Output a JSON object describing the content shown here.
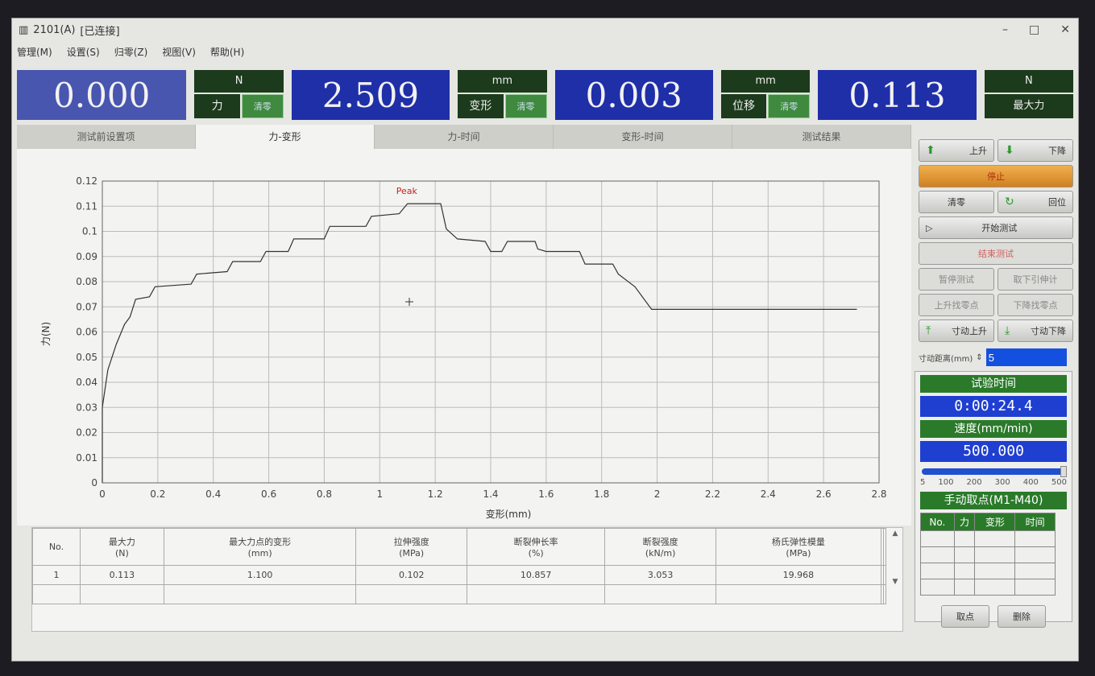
{
  "window": {
    "title": "2101(A)",
    "status": "[已连接]",
    "controls": {
      "minimize": "–",
      "maximize": "□",
      "close": "✕"
    }
  },
  "menu": [
    "管理(M)",
    "设置(S)",
    "归零(Z)",
    "视图(V)",
    "帮助(H)"
  ],
  "readouts": [
    {
      "value": "0.000",
      "unit": "N",
      "label": "力",
      "button": "清零"
    },
    {
      "value": "2.509",
      "unit": "mm",
      "label": "变形",
      "button": "清零"
    },
    {
      "value": "0.003",
      "unit": "mm",
      "label": "位移",
      "button": "清零"
    },
    {
      "value": "0.113",
      "unit": "N",
      "label": "最大力"
    }
  ],
  "tabs": [
    "测试前设置项",
    "力-变形",
    "力-时间",
    "变形-时间",
    "测试结果"
  ],
  "active_tab": "力-变形",
  "controls": {
    "up": "上升",
    "down": "下降",
    "stop": "停止",
    "clear": "清零",
    "return": "回位",
    "start": "开始测试",
    "end": "结束测试",
    "pause": "暂停测试",
    "remove_ext": "取下引伸计",
    "up_find": "上升找零点",
    "down_find": "下降找零点",
    "jog_up": "寸动上升",
    "jog_down": "寸动下降",
    "jog_label": "寸动距离(mm)",
    "jog_value": "5"
  },
  "status": {
    "time_label": "试验时间",
    "time_value": "0:00:24.4",
    "speed_label": "速度(mm/min)",
    "speed_value": "500.000",
    "speed_fraction": 1.0,
    "speed_ticks": [
      "5",
      "100",
      "200",
      "300",
      "400",
      "500"
    ],
    "manual_label": "手动取点(M1-M40)",
    "manual_cols": [
      "No.",
      "力",
      "变形",
      "时间"
    ],
    "take_point": "取点",
    "delete": "删除"
  },
  "results": {
    "headers": [
      [
        "No.",
        ""
      ],
      [
        "最大力",
        "(N)"
      ],
      [
        "最大力点的变形",
        "(mm)"
      ],
      [
        "拉伸强度",
        "(MPa)"
      ],
      [
        "断裂伸长率",
        "(%)"
      ],
      [
        "断裂强度",
        "(kN/m)"
      ],
      [
        "杨氏弹性模量",
        "(MPa)"
      ],
      [
        "",
        ""
      ],
      [
        "",
        ""
      ]
    ],
    "rows": [
      [
        "1",
        "0.113",
        "1.100",
        "0.102",
        "10.857",
        "3.053",
        "19.968",
        "",
        ""
      ]
    ]
  },
  "chart_data": {
    "type": "line",
    "xlabel": "变形(mm)",
    "ylabel": "力(N)",
    "xlim": [
      0,
      2.8
    ],
    "ylim": [
      0,
      0.12
    ],
    "grid": true,
    "xticks": [
      "0",
      "0.2",
      "0.4",
      "0.6",
      "0.8",
      "1",
      "1.2",
      "1.4",
      "1.6",
      "1.8",
      "2",
      "2.2",
      "2.4",
      "2.6",
      "2.8"
    ],
    "yticks": [
      "0",
      "0.01",
      "0.02",
      "0.03",
      "0.04",
      "0.05",
      "0.06",
      "0.07",
      "0.08",
      "0.09",
      "0.1",
      "0.11",
      "0.12"
    ],
    "annotation": {
      "text": "Peak",
      "x": 1.1,
      "y": 0.111
    },
    "x": [
      0,
      0,
      0.02,
      0.05,
      0.08,
      0.1,
      0.12,
      0.17,
      0.19,
      0.32,
      0.34,
      0.45,
      0.47,
      0.57,
      0.59,
      0.67,
      0.69,
      0.8,
      0.82,
      0.95,
      0.97,
      1.07,
      1.1,
      1.22,
      1.24,
      1.28,
      1.38,
      1.4,
      1.44,
      1.46,
      1.56,
      1.57,
      1.6,
      1.72,
      1.74,
      1.84,
      1.86,
      1.92,
      1.98,
      2.72
    ],
    "y": [
      0,
      0.03,
      0.045,
      0.055,
      0.063,
      0.066,
      0.073,
      0.074,
      0.078,
      0.079,
      0.083,
      0.084,
      0.088,
      0.088,
      0.092,
      0.092,
      0.097,
      0.097,
      0.102,
      0.102,
      0.106,
      0.107,
      0.111,
      0.111,
      0.101,
      0.097,
      0.096,
      0.092,
      0.092,
      0.096,
      0.096,
      0.093,
      0.092,
      0.092,
      0.087,
      0.087,
      0.083,
      0.078,
      0.069,
      0.069
    ],
    "colors": {
      "line": "#333333",
      "peak": "#cc2222"
    }
  }
}
